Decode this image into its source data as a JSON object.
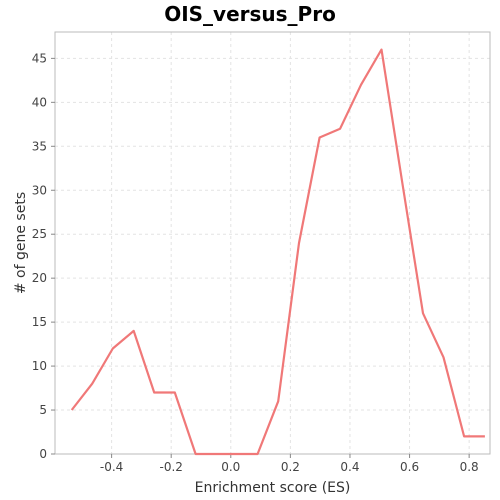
{
  "chart_data": {
    "type": "line",
    "title": "OIS_versus_Pro",
    "xlabel": "Enrichment score (ES)",
    "ylabel": "# of gene sets",
    "xlim": [
      -0.59,
      0.87
    ],
    "ylim": [
      0,
      48
    ],
    "x_ticks": [
      -0.4,
      -0.2,
      0.0,
      0.2,
      0.4,
      0.6,
      0.8
    ],
    "x_tick_labels": [
      "-0.4",
      "-0.2",
      "0.0",
      "0.2",
      "0.4",
      "0.6",
      "0.8"
    ],
    "y_ticks": [
      0,
      5,
      10,
      15,
      20,
      25,
      30,
      35,
      40,
      45
    ],
    "y_tick_labels": [
      "0",
      "5",
      "10",
      "15",
      "20",
      "25",
      "30",
      "35",
      "40",
      "45"
    ],
    "grid": true,
    "series": [
      {
        "color": "#f07878",
        "x": [
          -0.534,
          -0.465,
          -0.396,
          -0.326,
          -0.257,
          -0.188,
          -0.118,
          -0.049,
          0.021,
          0.09,
          0.159,
          0.229,
          0.298,
          0.367,
          0.437,
          0.506,
          0.575,
          0.645,
          0.714,
          0.783,
          0.853
        ],
        "y": [
          5,
          8,
          12,
          14,
          7,
          7,
          0,
          0,
          0,
          0,
          6,
          24,
          36,
          37,
          42,
          46,
          31,
          16,
          11,
          2,
          2
        ]
      }
    ]
  }
}
